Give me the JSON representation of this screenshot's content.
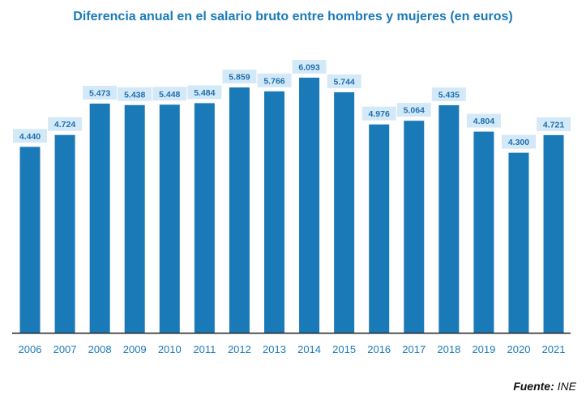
{
  "chart_data": {
    "type": "bar",
    "title": "Diferencia anual en el salario bruto entre hombres y mujeres (en euros)",
    "categories": [
      "2006",
      "2007",
      "2008",
      "2009",
      "2010",
      "2011",
      "2012",
      "2013",
      "2014",
      "2015",
      "2016",
      "2017",
      "2018",
      "2019",
      "2020",
      "2021"
    ],
    "values": [
      4440,
      4724,
      5473,
      5438,
      5448,
      5484,
      5859,
      5766,
      6093,
      5744,
      4976,
      5064,
      5435,
      4804,
      4300,
      4721
    ],
    "data_labels": [
      "4.440",
      "4.724",
      "5.473",
      "5.438",
      "5.448",
      "5.484",
      "5.859",
      "5.766",
      "6.093",
      "5.744",
      "4.976",
      "5.064",
      "5.435",
      "4.804",
      "4.300",
      "4.721"
    ],
    "ylim": [
      0,
      7000
    ],
    "grid": false,
    "colors": {
      "bar": "#1a7ab8",
      "label_bg": "#d4e9f7",
      "label_text": "#1f6fae",
      "tick_text": "#1a7ab8"
    }
  },
  "source": {
    "label": "Fuente:",
    "value": "INE"
  }
}
